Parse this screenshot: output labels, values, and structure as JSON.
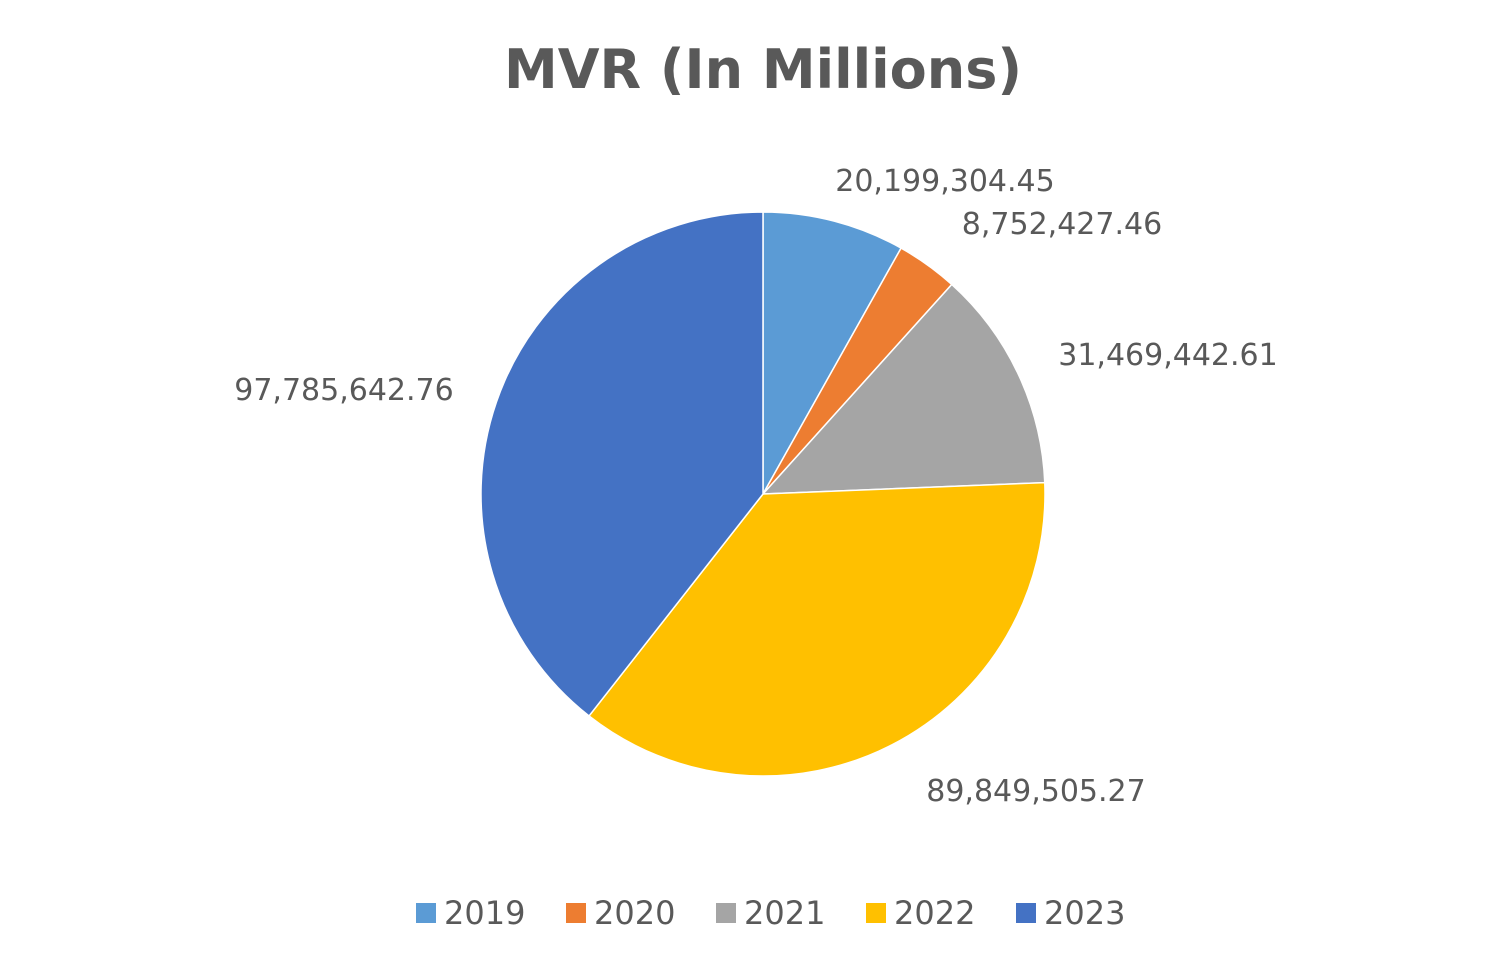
{
  "chart_data": {
    "type": "pie",
    "title": "MVR (In Millions)",
    "categories": [
      "2019",
      "2020",
      "2021",
      "2022",
      "2023"
    ],
    "values": [
      20199304.45,
      8752427.46,
      31469442.61,
      89849505.27,
      97785642.76
    ],
    "value_labels": [
      "20,199,304.45",
      "8,752,427.46",
      "31,469,442.61",
      "89,849,505.27",
      "97,785,642.76"
    ],
    "colors": [
      "#5B9BD5",
      "#ED7D31",
      "#A5A5A5",
      "#FFC000",
      "#4472C4"
    ],
    "start_angle_deg": 0,
    "direction": "clockwise",
    "legend_position": "bottom"
  }
}
